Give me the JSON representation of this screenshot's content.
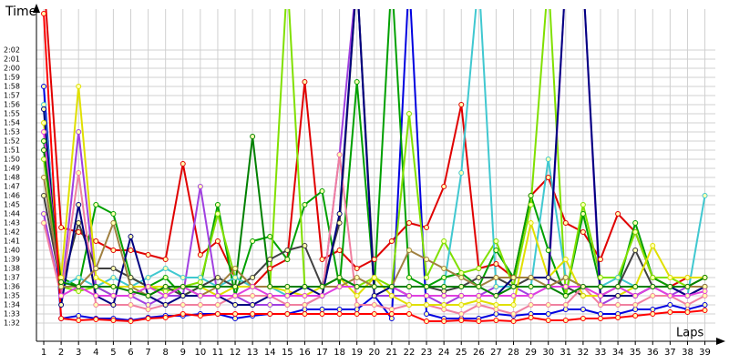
{
  "chart_data": {
    "type": "line",
    "y_label": "Time",
    "x_label": "Laps",
    "x": [
      1,
      2,
      3,
      4,
      5,
      6,
      7,
      8,
      9,
      10,
      11,
      12,
      13,
      14,
      15,
      16,
      17,
      18,
      19,
      20,
      21,
      22,
      23,
      24,
      25,
      26,
      27,
      28,
      29,
      30,
      31,
      32,
      33,
      34,
      35,
      36,
      37,
      38,
      39
    ],
    "xlim": [
      0.58,
      39.6
    ],
    "xticks": [
      1,
      2,
      3,
      4,
      5,
      6,
      7,
      8,
      9,
      10,
      11,
      12,
      13,
      14,
      15,
      16,
      17,
      18,
      19,
      20,
      21,
      22,
      23,
      24,
      25,
      26,
      27,
      28,
      29,
      30,
      31,
      32,
      33,
      34,
      35,
      36,
      37,
      38,
      39
    ],
    "ylim": [
      90,
      126.5
    ],
    "yticks": [
      {
        "value": 92,
        "label": "1:32"
      },
      {
        "value": 93,
        "label": "1:33"
      },
      {
        "value": 94,
        "label": "1:34"
      },
      {
        "value": 95,
        "label": "1:35"
      },
      {
        "value": 96,
        "label": "1:36"
      },
      {
        "value": 97,
        "label": "1:37"
      },
      {
        "value": 98,
        "label": "1:38"
      },
      {
        "value": 99,
        "label": "1:39"
      },
      {
        "value": 100,
        "label": "1:40"
      },
      {
        "value": 101,
        "label": "1:41"
      },
      {
        "value": 102,
        "label": "1:42"
      },
      {
        "value": 103,
        "label": "1:43"
      },
      {
        "value": 104,
        "label": "1:44"
      },
      {
        "value": 105,
        "label": "1:45"
      },
      {
        "value": 106,
        "label": "1:46"
      },
      {
        "value": 107,
        "label": "1:47"
      },
      {
        "value": 108,
        "label": "1:48"
      },
      {
        "value": 109,
        "label": "1:49"
      },
      {
        "value": 110,
        "label": "1:50"
      },
      {
        "value": 111,
        "label": "1:51"
      },
      {
        "value": 112,
        "label": "1:52"
      },
      {
        "value": 113,
        "label": "1:53"
      },
      {
        "value": 114,
        "label": "1:54"
      },
      {
        "value": 115,
        "label": "1:55"
      },
      {
        "value": 116,
        "label": "1:56"
      },
      {
        "value": 117,
        "label": "1:57"
      },
      {
        "value": 118,
        "label": "1:58"
      },
      {
        "value": 119,
        "label": "1:59"
      },
      {
        "value": 120,
        "label": "2:00"
      },
      {
        "value": 121,
        "label": "2:01"
      },
      {
        "value": 122,
        "label": "2:02"
      }
    ],
    "grid": true,
    "series": [
      {
        "color": "#e00000",
        "values": [
          130,
          102.5,
          102,
          101,
          100,
          100,
          99.5,
          99,
          109.5,
          99.5,
          101,
          97,
          96,
          98,
          99,
          118.5,
          99,
          100,
          98,
          99,
          101,
          103,
          102.5,
          107,
          116,
          98,
          98.5,
          97,
          106,
          108,
          103,
          102,
          99,
          104,
          102,
          97,
          96,
          97,
          97
        ]
      },
      {
        "color": "#0000e0",
        "values": [
          118,
          92.5,
          92.8,
          92.5,
          92.5,
          92.3,
          92.6,
          92.8,
          92.8,
          93,
          93,
          92.5,
          92.8,
          93,
          93,
          93.5,
          93.5,
          93.5,
          93.5,
          95,
          92.5,
          130,
          93,
          92.5,
          92.5,
          92.5,
          93,
          92.8,
          93,
          93,
          93.5,
          93.5,
          93,
          93,
          93.5,
          93.5,
          94,
          93.5,
          94
        ]
      },
      {
        "color": "#00a000",
        "values": [
          112,
          97,
          96,
          105,
          104,
          97,
          96,
          97,
          95,
          96,
          105,
          95,
          101,
          101.5,
          99,
          105,
          106.5,
          96,
          118.5,
          96,
          130,
          97,
          96,
          97,
          97.5,
          96,
          100,
          97,
          106,
          100,
          95,
          104,
          96,
          96,
          103,
          97,
          96,
          96,
          96
        ]
      },
      {
        "color": "#80e000",
        "values": [
          110,
          96,
          95.5,
          96,
          95,
          95,
          96,
          95.5,
          96,
          96.5,
          104,
          97,
          96,
          96,
          130,
          96,
          96,
          96,
          96,
          97,
          96,
          115,
          97,
          101,
          97.5,
          98,
          101,
          96,
          105,
          130,
          95,
          105,
          97,
          97,
          102,
          97,
          97,
          96,
          97
        ]
      },
      {
        "color": "#a040e0",
        "values": [
          104,
          95,
          113,
          96,
          95,
          95,
          94,
          95,
          95,
          107,
          95,
          95,
          94,
          94,
          94,
          94,
          95,
          110.5,
          130,
          95,
          95,
          95,
          95,
          94,
          95,
          95,
          96,
          96,
          95,
          96,
          130,
          130,
          94,
          95,
          95,
          96,
          95,
          96,
          96
        ]
      },
      {
        "color": "#40c8d0",
        "values": [
          116,
          96,
          97,
          96,
          97,
          96,
          97,
          98,
          97,
          97,
          96,
          97,
          96,
          96,
          95,
          96,
          96,
          97,
          96,
          96,
          96,
          96,
          96,
          96,
          108.5,
          130,
          96,
          96,
          96,
          110,
          97,
          96,
          96,
          97,
          96,
          96,
          96,
          95,
          106
        ]
      },
      {
        "color": "#404040",
        "values": [
          106,
          96,
          103,
          98,
          98,
          97,
          96,
          96,
          95,
          96,
          97,
          96,
          97,
          99,
          100,
          100.5,
          96,
          103,
          130,
          96,
          96,
          96,
          96,
          95.5,
          96,
          97,
          97,
          96,
          97,
          97,
          96,
          95,
          95,
          96,
          100,
          96,
          96,
          95,
          96
        ]
      },
      {
        "color": "#f080a0",
        "values": [
          103,
          95,
          108.5,
          94,
          94,
          94,
          93.5,
          94,
          94,
          94,
          94,
          95,
          95,
          95,
          94,
          94,
          95,
          110.5,
          94,
          94,
          93.5,
          94,
          94,
          93.5,
          93,
          94,
          93.5,
          93,
          94,
          94,
          94,
          96,
          94,
          94,
          94,
          95,
          95,
          94,
          95
        ]
      },
      {
        "color": "#e0e000",
        "values": [
          114,
          97,
          118,
          97,
          96,
          96,
          96,
          96,
          96,
          96,
          95,
          96,
          96,
          96,
          95.5,
          95,
          96,
          97,
          95,
          97,
          95,
          94,
          94,
          94,
          94,
          94.5,
          94,
          94,
          103,
          97,
          99,
          95,
          95,
          95,
          96,
          100.5,
          97,
          97,
          97
        ]
      },
      {
        "color": "#000080",
        "values": [
          115.5,
          94,
          105,
          95,
          94,
          101.5,
          95,
          94,
          95,
          95,
          95,
          94,
          94,
          95,
          95,
          96,
          95,
          104,
          130,
          95,
          96,
          95,
          95,
          95,
          95,
          95,
          95,
          97,
          97,
          97,
          130,
          130,
          95,
          95,
          95,
          96,
          96,
          95,
          96
        ]
      },
      {
        "color": "#a08040",
        "values": [
          108,
          96,
          96,
          98,
          103,
          96,
          95,
          96,
          96,
          95,
          96,
          98,
          96,
          96,
          96,
          96,
          96,
          96,
          97,
          96,
          96,
          100,
          99,
          98,
          97,
          96,
          97,
          97,
          97,
          96,
          97,
          96,
          96,
          96,
          96,
          96,
          96,
          96,
          96
        ]
      },
      {
        "color": "#e040e0",
        "values": [
          113,
          95,
          96,
          95,
          95,
          95,
          96,
          95,
          96,
          95,
          95,
          95,
          96,
          95,
          95,
          95,
          95,
          96,
          96,
          96,
          96,
          95,
          95,
          95,
          95,
          95,
          95,
          95,
          95,
          96,
          96,
          96,
          95,
          96,
          95,
          96,
          95,
          95,
          95.5
        ]
      },
      {
        "color": "#008000",
        "values": [
          111,
          96.5,
          96,
          96,
          96,
          95.5,
          95,
          96,
          96,
          96,
          96,
          96,
          112.5,
          96,
          96,
          96,
          96,
          97,
          96,
          96,
          96,
          96,
          96,
          96,
          96,
          96,
          95,
          96,
          96,
          96,
          95,
          96,
          96,
          96,
          96,
          96,
          96,
          96,
          97
        ]
      },
      {
        "color": "#ff0000",
        "values": [
          126,
          92.5,
          92.3,
          92.4,
          92.3,
          92.2,
          92.5,
          92.6,
          93,
          92.8,
          93,
          93,
          93,
          93,
          93,
          93,
          93,
          93,
          93,
          93,
          93,
          93,
          92.2,
          92.2,
          92.3,
          92.2,
          92.3,
          92.2,
          92.6,
          92.3,
          92.3,
          92.5,
          92.5,
          92.6,
          92.8,
          93,
          93.2,
          93.2,
          93.4
        ]
      }
    ]
  }
}
